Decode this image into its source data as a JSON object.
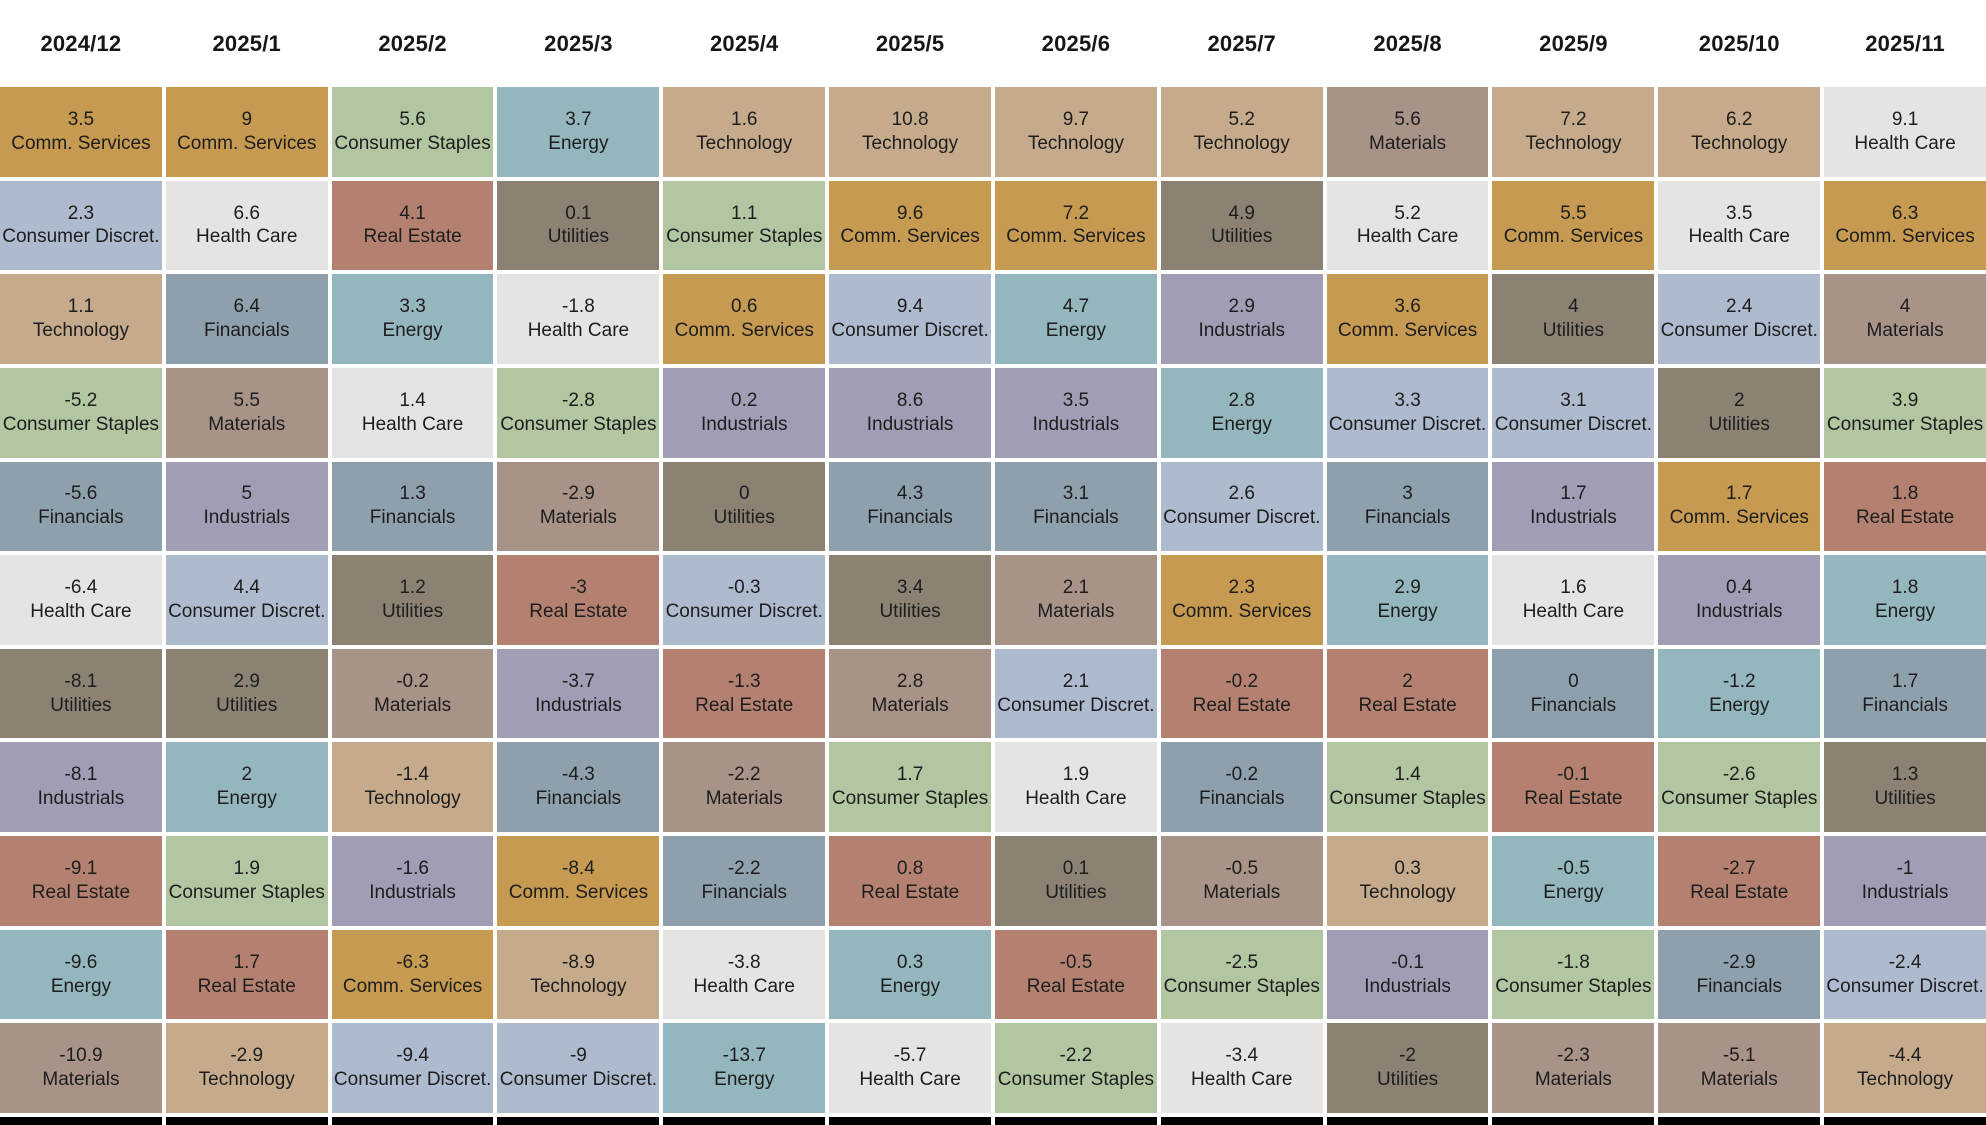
{
  "chart_data": {
    "type": "table",
    "description": "Monthly sector performance quilt: each column is a month, cells are sectors ranked top-to-bottom by return value",
    "sector_colors": {
      "Comm. Services": "#c79a52",
      "Consumer Discret.": "#aebbce",
      "Technology": "#c5ab8c",
      "Consumer Staples": "#b2c6a2",
      "Financials": "#8fa0ad",
      "Health Care": "#e5e4e3",
      "Utilities": "#8b8274",
      "Industrials": "#a19db5",
      "Real Estate": "#b48171",
      "Energy": "#94b6bd",
      "Materials": "#a89388"
    },
    "columns": [
      {
        "label": "2024/12",
        "cells": [
          {
            "value": "3.5",
            "sector": "Comm. Services"
          },
          {
            "value": "2.3",
            "sector": "Consumer Discret."
          },
          {
            "value": "1.1",
            "sector": "Technology"
          },
          {
            "value": "-5.2",
            "sector": "Consumer Staples"
          },
          {
            "value": "-5.6",
            "sector": "Financials"
          },
          {
            "value": "-6.4",
            "sector": "Health Care"
          },
          {
            "value": "-8.1",
            "sector": "Utilities"
          },
          {
            "value": "-8.1",
            "sector": "Industrials"
          },
          {
            "value": "-9.1",
            "sector": "Real Estate"
          },
          {
            "value": "-9.6",
            "sector": "Energy"
          },
          {
            "value": "-10.9",
            "sector": "Materials"
          }
        ]
      },
      {
        "label": "2025/1",
        "cells": [
          {
            "value": "9",
            "sector": "Comm. Services"
          },
          {
            "value": "6.6",
            "sector": "Health Care"
          },
          {
            "value": "6.4",
            "sector": "Financials"
          },
          {
            "value": "5.5",
            "sector": "Materials"
          },
          {
            "value": "5",
            "sector": "Industrials"
          },
          {
            "value": "4.4",
            "sector": "Consumer Discret."
          },
          {
            "value": "2.9",
            "sector": "Utilities"
          },
          {
            "value": "2",
            "sector": "Energy"
          },
          {
            "value": "1.9",
            "sector": "Consumer Staples"
          },
          {
            "value": "1.7",
            "sector": "Real Estate"
          },
          {
            "value": "-2.9",
            "sector": "Technology"
          }
        ]
      },
      {
        "label": "2025/2",
        "cells": [
          {
            "value": "5.6",
            "sector": "Consumer Staples"
          },
          {
            "value": "4.1",
            "sector": "Real Estate"
          },
          {
            "value": "3.3",
            "sector": "Energy"
          },
          {
            "value": "1.4",
            "sector": "Health Care"
          },
          {
            "value": "1.3",
            "sector": "Financials"
          },
          {
            "value": "1.2",
            "sector": "Utilities"
          },
          {
            "value": "-0.2",
            "sector": "Materials"
          },
          {
            "value": "-1.4",
            "sector": "Technology"
          },
          {
            "value": "-1.6",
            "sector": "Industrials"
          },
          {
            "value": "-6.3",
            "sector": "Comm. Services"
          },
          {
            "value": "-9.4",
            "sector": "Consumer Discret."
          }
        ]
      },
      {
        "label": "2025/3",
        "cells": [
          {
            "value": "3.7",
            "sector": "Energy"
          },
          {
            "value": "0.1",
            "sector": "Utilities"
          },
          {
            "value": "-1.8",
            "sector": "Health Care"
          },
          {
            "value": "-2.8",
            "sector": "Consumer Staples"
          },
          {
            "value": "-2.9",
            "sector": "Materials"
          },
          {
            "value": "-3",
            "sector": "Real Estate"
          },
          {
            "value": "-3.7",
            "sector": "Industrials"
          },
          {
            "value": "-4.3",
            "sector": "Financials"
          },
          {
            "value": "-8.4",
            "sector": "Comm. Services"
          },
          {
            "value": "-8.9",
            "sector": "Technology"
          },
          {
            "value": "-9",
            "sector": "Consumer Discret."
          }
        ]
      },
      {
        "label": "2025/4",
        "cells": [
          {
            "value": "1.6",
            "sector": "Technology"
          },
          {
            "value": "1.1",
            "sector": "Consumer Staples"
          },
          {
            "value": "0.6",
            "sector": "Comm. Services"
          },
          {
            "value": "0.2",
            "sector": "Industrials"
          },
          {
            "value": "0",
            "sector": "Utilities"
          },
          {
            "value": "-0.3",
            "sector": "Consumer Discret."
          },
          {
            "value": "-1.3",
            "sector": "Real Estate"
          },
          {
            "value": "-2.2",
            "sector": "Materials"
          },
          {
            "value": "-2.2",
            "sector": "Financials"
          },
          {
            "value": "-3.8",
            "sector": "Health Care"
          },
          {
            "value": "-13.7",
            "sector": "Energy"
          }
        ]
      },
      {
        "label": "2025/5",
        "cells": [
          {
            "value": "10.8",
            "sector": "Technology"
          },
          {
            "value": "9.6",
            "sector": "Comm. Services"
          },
          {
            "value": "9.4",
            "sector": "Consumer Discret."
          },
          {
            "value": "8.6",
            "sector": "Industrials"
          },
          {
            "value": "4.3",
            "sector": "Financials"
          },
          {
            "value": "3.4",
            "sector": "Utilities"
          },
          {
            "value": "2.8",
            "sector": "Materials"
          },
          {
            "value": "1.7",
            "sector": "Consumer Staples"
          },
          {
            "value": "0.8",
            "sector": "Real Estate"
          },
          {
            "value": "0.3",
            "sector": "Energy"
          },
          {
            "value": "-5.7",
            "sector": "Health Care"
          }
        ]
      },
      {
        "label": "2025/6",
        "cells": [
          {
            "value": "9.7",
            "sector": "Technology"
          },
          {
            "value": "7.2",
            "sector": "Comm. Services"
          },
          {
            "value": "4.7",
            "sector": "Energy"
          },
          {
            "value": "3.5",
            "sector": "Industrials"
          },
          {
            "value": "3.1",
            "sector": "Financials"
          },
          {
            "value": "2.1",
            "sector": "Materials"
          },
          {
            "value": "2.1",
            "sector": "Consumer Discret."
          },
          {
            "value": "1.9",
            "sector": "Health Care"
          },
          {
            "value": "0.1",
            "sector": "Utilities"
          },
          {
            "value": "-0.5",
            "sector": "Real Estate"
          },
          {
            "value": "-2.2",
            "sector": "Consumer Staples"
          }
        ]
      },
      {
        "label": "2025/7",
        "cells": [
          {
            "value": "5.2",
            "sector": "Technology"
          },
          {
            "value": "4.9",
            "sector": "Utilities"
          },
          {
            "value": "2.9",
            "sector": "Industrials"
          },
          {
            "value": "2.8",
            "sector": "Energy"
          },
          {
            "value": "2.6",
            "sector": "Consumer Discret."
          },
          {
            "value": "2.3",
            "sector": "Comm. Services"
          },
          {
            "value": "-0.2",
            "sector": "Real Estate"
          },
          {
            "value": "-0.2",
            "sector": "Financials"
          },
          {
            "value": "-0.5",
            "sector": "Materials"
          },
          {
            "value": "-2.5",
            "sector": "Consumer Staples"
          },
          {
            "value": "-3.4",
            "sector": "Health Care"
          }
        ]
      },
      {
        "label": "2025/8",
        "cells": [
          {
            "value": "5.6",
            "sector": "Materials"
          },
          {
            "value": "5.2",
            "sector": "Health Care"
          },
          {
            "value": "3.6",
            "sector": "Comm. Services"
          },
          {
            "value": "3.3",
            "sector": "Consumer Discret."
          },
          {
            "value": "3",
            "sector": "Financials"
          },
          {
            "value": "2.9",
            "sector": "Energy"
          },
          {
            "value": "2",
            "sector": "Real Estate"
          },
          {
            "value": "1.4",
            "sector": "Consumer Staples"
          },
          {
            "value": "0.3",
            "sector": "Technology"
          },
          {
            "value": "-0.1",
            "sector": "Industrials"
          },
          {
            "value": "-2",
            "sector": "Utilities"
          }
        ]
      },
      {
        "label": "2025/9",
        "cells": [
          {
            "value": "7.2",
            "sector": "Technology"
          },
          {
            "value": "5.5",
            "sector": "Comm. Services"
          },
          {
            "value": "4",
            "sector": "Utilities"
          },
          {
            "value": "3.1",
            "sector": "Consumer Discret."
          },
          {
            "value": "1.7",
            "sector": "Industrials"
          },
          {
            "value": "1.6",
            "sector": "Health Care"
          },
          {
            "value": "0",
            "sector": "Financials"
          },
          {
            "value": "-0.1",
            "sector": "Real Estate"
          },
          {
            "value": "-0.5",
            "sector": "Energy"
          },
          {
            "value": "-1.8",
            "sector": "Consumer Staples"
          },
          {
            "value": "-2.3",
            "sector": "Materials"
          }
        ]
      },
      {
        "label": "2025/10",
        "cells": [
          {
            "value": "6.2",
            "sector": "Technology"
          },
          {
            "value": "3.5",
            "sector": "Health Care"
          },
          {
            "value": "2.4",
            "sector": "Consumer Discret."
          },
          {
            "value": "2",
            "sector": "Utilities"
          },
          {
            "value": "1.7",
            "sector": "Comm. Services"
          },
          {
            "value": "0.4",
            "sector": "Industrials"
          },
          {
            "value": "-1.2",
            "sector": "Energy"
          },
          {
            "value": "-2.6",
            "sector": "Consumer Staples"
          },
          {
            "value": "-2.7",
            "sector": "Real Estate"
          },
          {
            "value": "-2.9",
            "sector": "Financials"
          },
          {
            "value": "-5.1",
            "sector": "Materials"
          }
        ]
      },
      {
        "label": "2025/11",
        "cells": [
          {
            "value": "9.1",
            "sector": "Health Care"
          },
          {
            "value": "6.3",
            "sector": "Comm. Services"
          },
          {
            "value": "4",
            "sector": "Materials"
          },
          {
            "value": "3.9",
            "sector": "Consumer Staples"
          },
          {
            "value": "1.8",
            "sector": "Real Estate"
          },
          {
            "value": "1.8",
            "sector": "Energy"
          },
          {
            "value": "1.7",
            "sector": "Financials"
          },
          {
            "value": "1.3",
            "sector": "Utilities"
          },
          {
            "value": "-1",
            "sector": "Industrials"
          },
          {
            "value": "-2.4",
            "sector": "Consumer Discret."
          },
          {
            "value": "-4.4",
            "sector": "Technology"
          }
        ]
      }
    ]
  }
}
